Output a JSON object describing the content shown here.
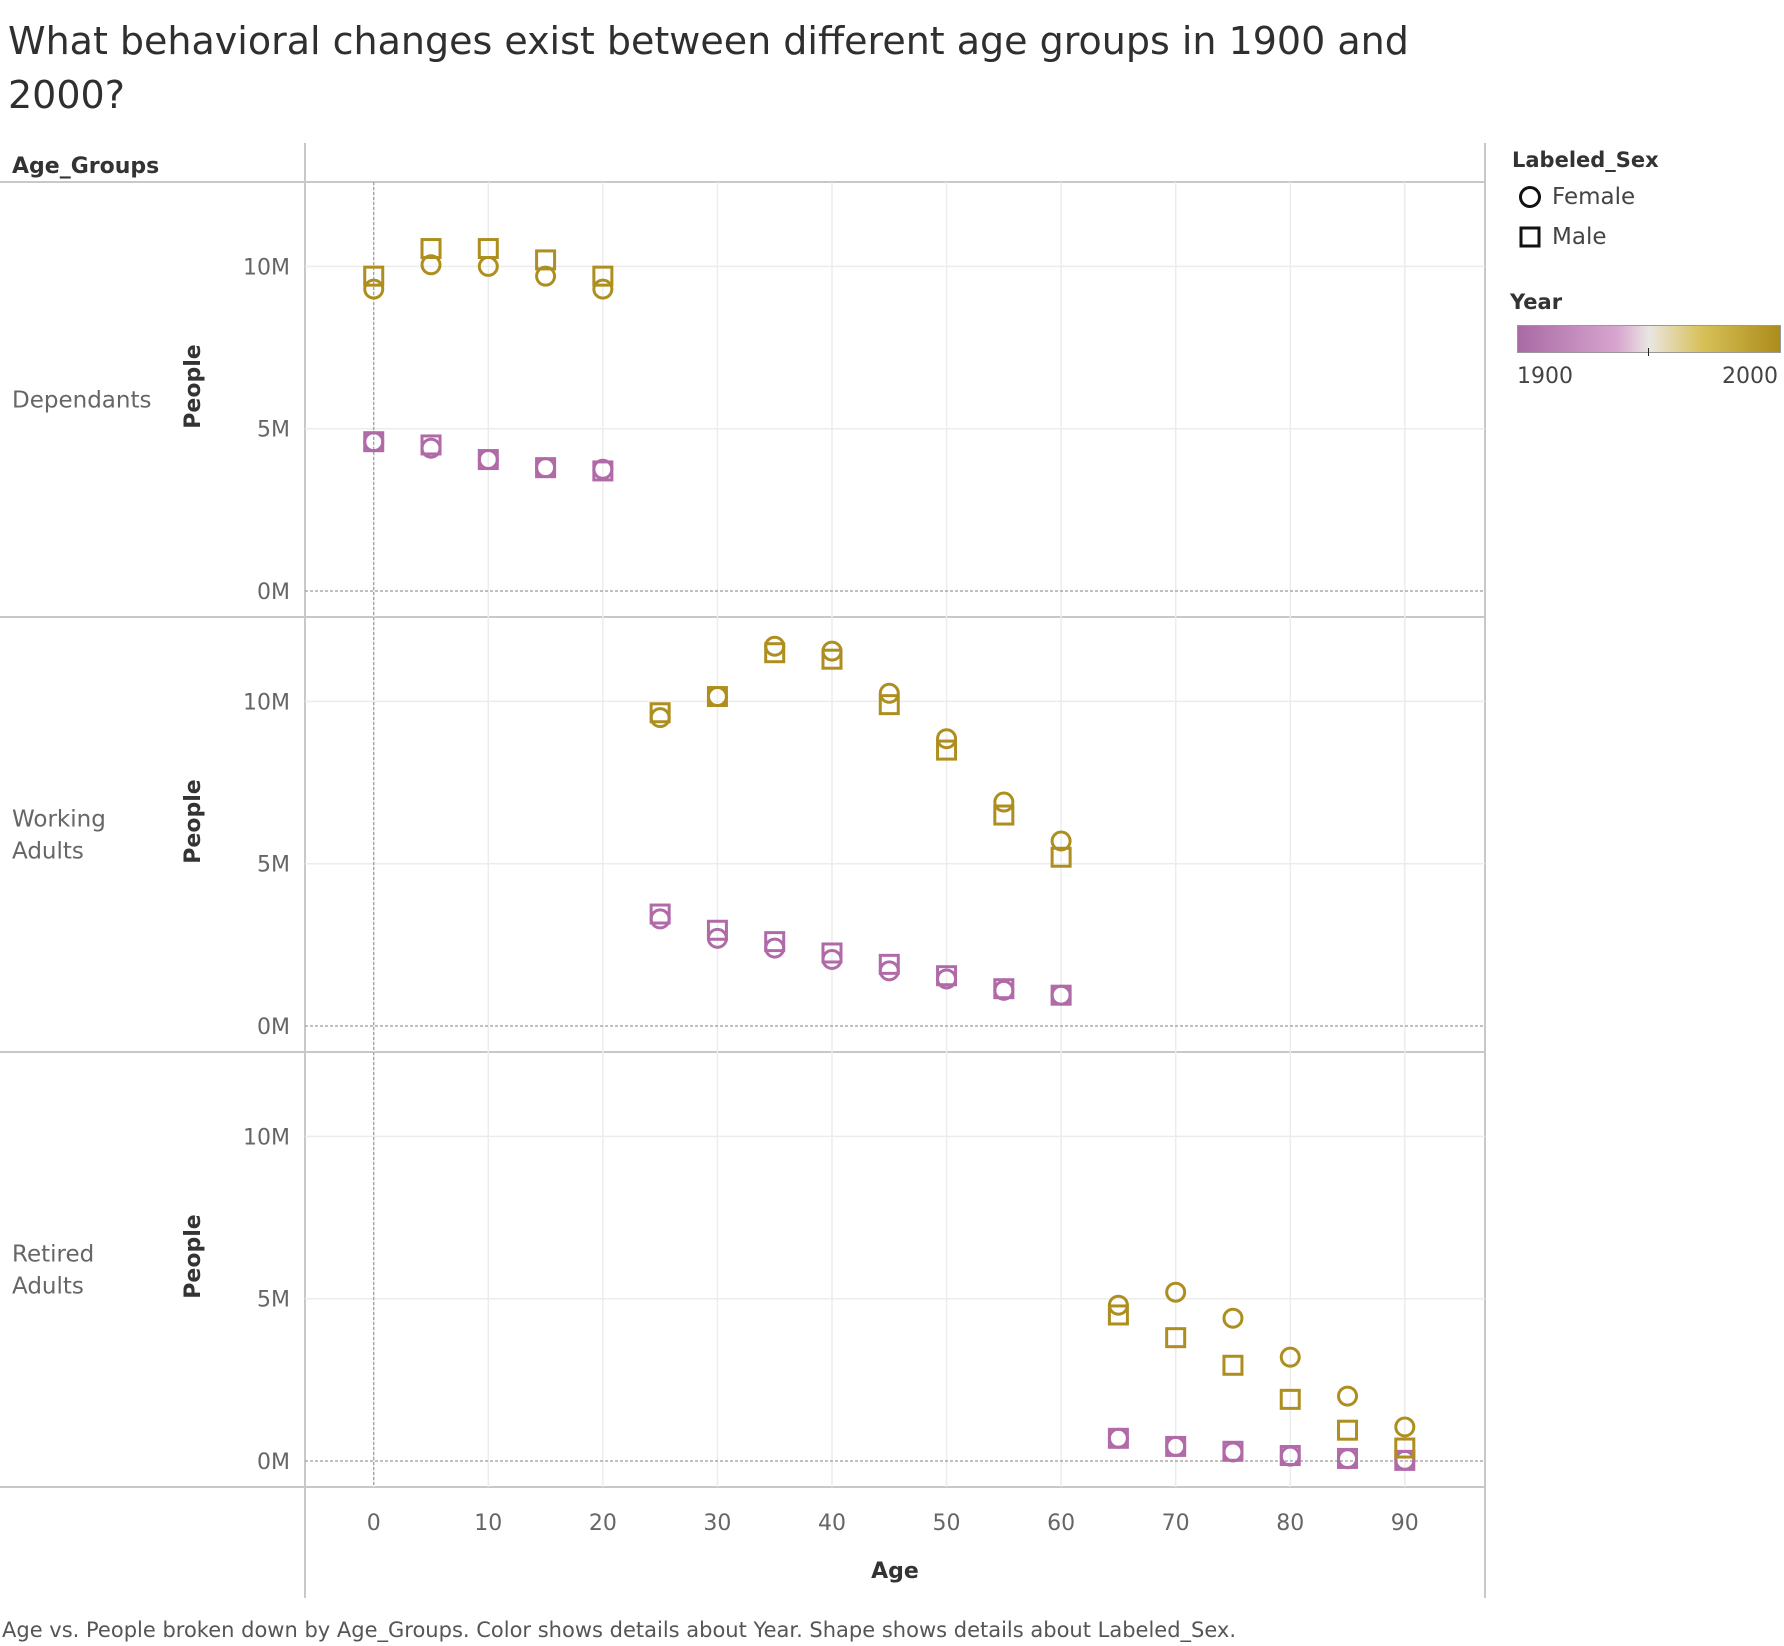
{
  "title": "What behavioral changes exist between different age groups in 1900 and 2000?",
  "caption": "Age vs. People broken down by Age_Groups.  Color shows details about Year.  Shape shows details about Labeled_Sex.",
  "colors": {
    "year_1900": "#b06aa8",
    "year_2000": "#ad8e1e",
    "axis": "#c8c8c8",
    "grid": "#ececec",
    "zero": "#9a9a9a"
  },
  "legend": {
    "shape_title": "Labeled_Sex",
    "shapes": [
      {
        "label": "Female",
        "icon": "circle-icon"
      },
      {
        "label": "Male",
        "icon": "square-icon"
      }
    ],
    "color_title": "Year",
    "color_min": "1900",
    "color_max": "2000"
  },
  "chart_data": {
    "type": "scatter",
    "row_header": "Age_Groups",
    "xlabel": "Age",
    "ylabel": "People",
    "xlim": [
      -6,
      97
    ],
    "ylim": [
      -0.8,
      12.6
    ],
    "x_ticks": [
      "0",
      "10",
      "20",
      "30",
      "40",
      "50",
      "60",
      "70",
      "80",
      "90"
    ],
    "y_ticks": [
      "0M",
      "5M",
      "10M"
    ],
    "y_unit": "millions of people",
    "grid": true,
    "legend_position": "right",
    "panels": [
      {
        "name": "Dependants",
        "series": [
          {
            "year": "1900",
            "sex": "Female",
            "x": [
              0,
              5,
              10,
              15,
              20
            ],
            "y": [
              4.6,
              4.4,
              4.05,
              3.8,
              3.75
            ]
          },
          {
            "year": "1900",
            "sex": "Male",
            "x": [
              0,
              5,
              10,
              15,
              20
            ],
            "y": [
              4.6,
              4.5,
              4.05,
              3.8,
              3.7
            ]
          },
          {
            "year": "2000",
            "sex": "Female",
            "x": [
              0,
              5,
              10,
              15,
              20
            ],
            "y": [
              9.3,
              10.05,
              10.0,
              9.7,
              9.3
            ]
          },
          {
            "year": "2000",
            "sex": "Male",
            "x": [
              0,
              5,
              10,
              15,
              20
            ],
            "y": [
              9.7,
              10.55,
              10.55,
              10.2,
              9.7
            ]
          }
        ]
      },
      {
        "name": "Working Adults",
        "series": [
          {
            "year": "1900",
            "sex": "Female",
            "x": [
              25,
              30,
              35,
              40,
              45,
              50,
              55,
              60
            ],
            "y": [
              3.3,
              2.7,
              2.4,
              2.05,
              1.7,
              1.45,
              1.1,
              0.95
            ]
          },
          {
            "year": "1900",
            "sex": "Male",
            "x": [
              25,
              30,
              35,
              40,
              45,
              50,
              55,
              60
            ],
            "y": [
              3.45,
              2.95,
              2.6,
              2.25,
              1.9,
              1.55,
              1.15,
              0.95
            ]
          },
          {
            "year": "2000",
            "sex": "Female",
            "x": [
              25,
              30,
              35,
              40,
              45,
              50,
              55,
              60
            ],
            "y": [
              9.5,
              10.15,
              11.7,
              11.55,
              10.25,
              8.85,
              6.9,
              5.7
            ]
          },
          {
            "year": "2000",
            "sex": "Male",
            "x": [
              25,
              30,
              35,
              40,
              45,
              50,
              55,
              60
            ],
            "y": [
              9.65,
              10.15,
              11.5,
              11.3,
              9.9,
              8.5,
              6.5,
              5.2
            ]
          }
        ]
      },
      {
        "name": "Retired Adults",
        "series": [
          {
            "year": "1900",
            "sex": "Female",
            "x": [
              65,
              70,
              75,
              80,
              85,
              90
            ],
            "y": [
              0.7,
              0.45,
              0.28,
              0.15,
              0.07,
              0.02
            ]
          },
          {
            "year": "1900",
            "sex": "Male",
            "x": [
              65,
              70,
              75,
              80,
              85,
              90
            ],
            "y": [
              0.7,
              0.45,
              0.3,
              0.17,
              0.08,
              0.02
            ]
          },
          {
            "year": "2000",
            "sex": "Female",
            "x": [
              65,
              70,
              75,
              80,
              85,
              90
            ],
            "y": [
              4.8,
              5.2,
              4.4,
              3.2,
              2.0,
              1.05
            ]
          },
          {
            "year": "2000",
            "sex": "Male",
            "x": [
              65,
              70,
              75,
              80,
              85,
              90
            ],
            "y": [
              4.5,
              3.8,
              2.95,
              1.9,
              0.95,
              0.4
            ]
          }
        ]
      }
    ]
  }
}
